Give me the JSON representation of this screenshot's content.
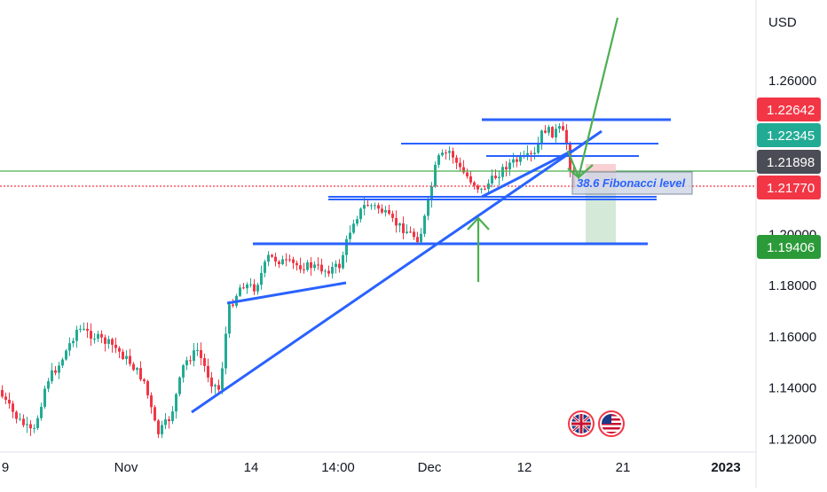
{
  "chart_data": {
    "type": "candlestick",
    "currency_label": "USD",
    "y_ticks": [
      "1.26000",
      "1.20000",
      "1.18000",
      "1.16000",
      "1.14000",
      "1.12000"
    ],
    "x_ticks": [
      "9",
      "Nov",
      "14",
      "14:00",
      "Dec",
      "12",
      "21",
      "2023"
    ],
    "price_badges": [
      {
        "value": "1.22642",
        "color": "#f23645"
      },
      {
        "value": "1.22345",
        "color": "#22ab94"
      },
      {
        "value": "1.21898",
        "color": "#4a4d55"
      },
      {
        "value": "1.21770",
        "color": "#f23645"
      },
      {
        "value": "1.19406",
        "color": "#2b9a38"
      }
    ],
    "annotation": "38.6 Fibonacci level",
    "ylim": [
      1.112,
      1.287
    ],
    "colors": {
      "up": "#22ab94",
      "down": "#f23645",
      "drawing": "#2962ff",
      "arrow": "#4caf50",
      "green_line": "#4caf50",
      "red_line": "#f23645"
    }
  },
  "icons": [
    "gb-flag-icon",
    "us-flag-icon"
  ]
}
